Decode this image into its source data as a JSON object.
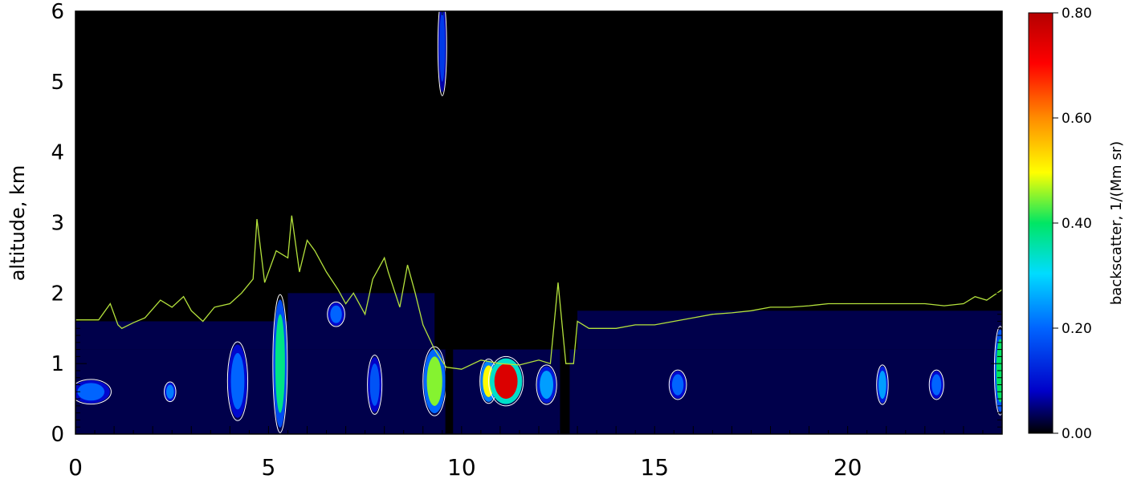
{
  "chart_data": {
    "type": "heatmap",
    "title": "",
    "xlabel": "",
    "ylabel": "altitude, km",
    "xlim": [
      0,
      24
    ],
    "ylim": [
      0,
      6
    ],
    "x_ticks": [
      "0",
      "5",
      "10",
      "15",
      "20"
    ],
    "x_tick_values": [
      0,
      5,
      10,
      15,
      20
    ],
    "y_ticks": [
      "0",
      "1",
      "2",
      "3",
      "4",
      "5",
      "6"
    ],
    "y_tick_values": [
      0,
      1,
      2,
      3,
      4,
      5,
      6
    ],
    "colorbar": {
      "label": "backscatter, 1/(Mm sr)",
      "range": [
        0,
        0.8
      ],
      "ticks": [
        "0.00",
        "0.20",
        "0.40",
        "0.60",
        "0.80"
      ],
      "tick_values": [
        0,
        0.2,
        0.4,
        0.6,
        0.8
      ],
      "colormap": "rainbow"
    },
    "colors": {
      "background": "#000000",
      "boundary_layer_line": "#b4e23c",
      "contour_line": "#ffffff",
      "low_signal": "#0a1bb4"
    },
    "boundary_layer_height": {
      "name": "",
      "x": [
        0,
        0.6,
        0.9,
        1.1,
        1.2,
        1.5,
        1.8,
        2.2,
        2.5,
        2.8,
        3.0,
        3.3,
        3.6,
        4.0,
        4.3,
        4.6,
        4.7,
        4.9,
        5.2,
        5.5,
        5.6,
        5.8,
        6.0,
        6.2,
        6.5,
        6.8,
        7.0,
        7.2,
        7.5,
        7.7,
        8.0,
        8.1,
        8.4,
        8.6,
        8.8,
        9.0,
        9.3,
        9.6,
        10.0,
        10.5,
        11.0,
        11.5,
        12.0,
        12.3,
        12.5,
        12.7,
        12.9,
        13.0,
        13.3,
        14.0,
        14.5,
        15.0,
        15.5,
        16.0,
        16.5,
        17.0,
        17.5,
        18.0,
        18.5,
        19.0,
        19.5,
        20.0,
        20.5,
        21.0,
        21.5,
        22.0,
        22.5,
        23.0,
        23.3,
        23.6,
        24.0
      ],
      "values": [
        1.62,
        1.62,
        1.85,
        1.55,
        1.5,
        1.58,
        1.65,
        1.9,
        1.8,
        1.95,
        1.75,
        1.6,
        1.8,
        1.85,
        2.0,
        2.2,
        3.05,
        2.15,
        2.6,
        2.5,
        3.1,
        2.3,
        2.75,
        2.6,
        2.3,
        2.05,
        1.85,
        2.0,
        1.7,
        2.2,
        2.5,
        2.3,
        1.8,
        2.4,
        2.0,
        1.55,
        1.2,
        0.95,
        0.92,
        1.05,
        1.0,
        0.98,
        1.05,
        1.0,
        2.15,
        1.0,
        1.0,
        1.6,
        1.5,
        1.5,
        1.55,
        1.55,
        1.6,
        1.65,
        1.7,
        1.72,
        1.75,
        1.8,
        1.8,
        1.82,
        1.85,
        1.85,
        1.85,
        1.85,
        1.85,
        1.85,
        1.82,
        1.85,
        1.95,
        1.9,
        2.05
      ]
    },
    "layers": [
      {
        "x0": 0,
        "x1": 24,
        "y0": 0,
        "y1": 1.2,
        "value": 0.03
      },
      {
        "x0": 0,
        "x1": 5.5,
        "y0": 1.2,
        "y1": 1.6,
        "value": 0.03
      },
      {
        "x0": 5.5,
        "x1": 9.3,
        "y0": 1.2,
        "y1": 2.0,
        "value": 0.03
      },
      {
        "x0": 13.0,
        "x1": 24,
        "y0": 1.2,
        "y1": 1.75,
        "value": 0.03
      }
    ],
    "aerosol_plumes": [
      {
        "x": 0.4,
        "y": 0.6,
        "w": 0.7,
        "h": 0.25,
        "value": 0.2
      },
      {
        "x": 2.45,
        "y": 0.6,
        "w": 0.2,
        "h": 0.2,
        "value": 0.22
      },
      {
        "x": 4.2,
        "y": 0.75,
        "w": 0.35,
        "h": 0.8,
        "value": 0.2
      },
      {
        "x": 5.3,
        "y": 1.0,
        "w": 0.25,
        "h": 1.4,
        "value": 0.38
      },
      {
        "x": 6.75,
        "y": 1.7,
        "w": 0.3,
        "h": 0.25,
        "value": 0.2
      },
      {
        "x": 7.75,
        "y": 0.7,
        "w": 0.25,
        "h": 0.6,
        "value": 0.18
      },
      {
        "x": 9.3,
        "y": 0.75,
        "w": 0.4,
        "h": 0.7,
        "value": 0.45
      },
      {
        "x": 9.5,
        "y": 5.5,
        "w": 0.15,
        "h": 1.0,
        "value": 0.15
      },
      {
        "x": 10.7,
        "y": 0.75,
        "w": 0.3,
        "h": 0.45,
        "value": 0.5
      },
      {
        "x": 11.15,
        "y": 0.75,
        "w": 0.6,
        "h": 0.5,
        "value": 0.75
      },
      {
        "x": 12.2,
        "y": 0.7,
        "w": 0.35,
        "h": 0.4,
        "value": 0.25
      },
      {
        "x": 15.6,
        "y": 0.7,
        "w": 0.3,
        "h": 0.3,
        "value": 0.2
      },
      {
        "x": 20.9,
        "y": 0.7,
        "w": 0.2,
        "h": 0.4,
        "value": 0.25
      },
      {
        "x": 22.3,
        "y": 0.7,
        "w": 0.25,
        "h": 0.3,
        "value": 0.2
      },
      {
        "x": 23.95,
        "y": 0.9,
        "w": 0.2,
        "h": 0.9,
        "value": 0.4
      }
    ],
    "data_gaps": [
      {
        "x0": 9.58,
        "x1": 9.78
      },
      {
        "x0": 12.55,
        "x1": 12.8
      }
    ]
  }
}
